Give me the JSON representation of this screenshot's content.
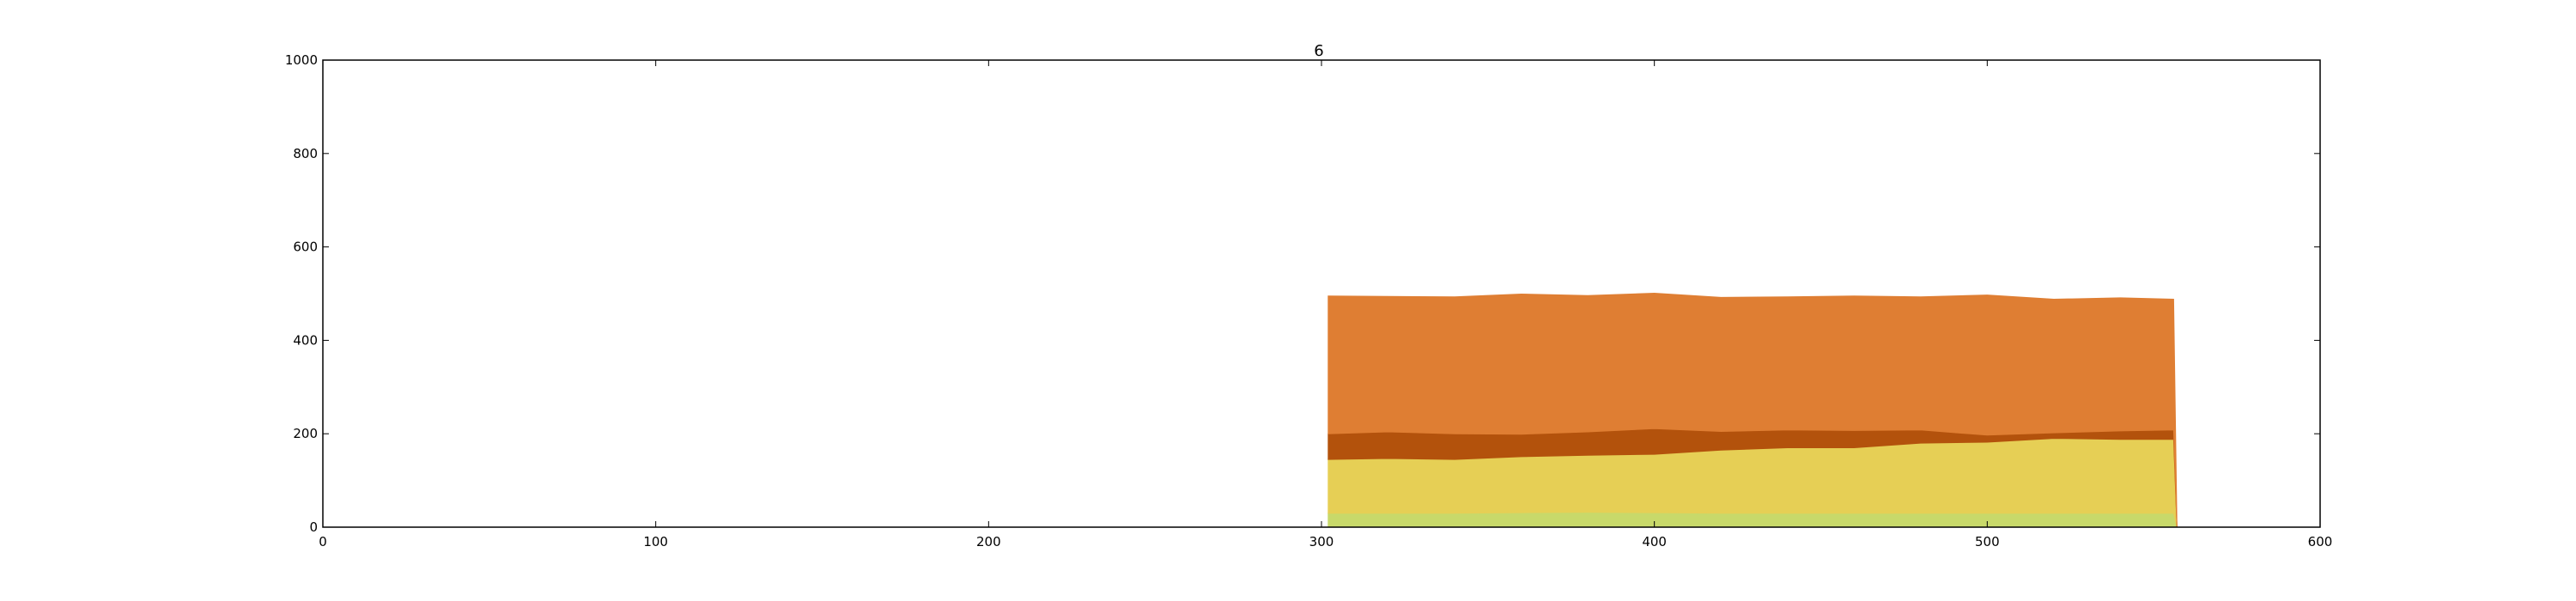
{
  "chart_data": {
    "type": "area",
    "title": "6",
    "xlabel": "",
    "ylabel": "",
    "xlim": [
      0,
      600
    ],
    "ylim": [
      0,
      1000
    ],
    "x_ticks": [
      0,
      100,
      200,
      300,
      400,
      500,
      600
    ],
    "y_ticks": [
      0,
      200,
      400,
      600,
      800,
      1000
    ],
    "x_tick_labels": [
      "0",
      "100",
      "200",
      "300",
      "400",
      "500",
      "600"
    ],
    "y_tick_labels": [
      "0",
      "200",
      "400",
      "600",
      "800",
      "1000"
    ],
    "grid": false,
    "legend": "none",
    "stacked": true,
    "x": [
      302,
      320,
      340,
      360,
      380,
      400,
      420,
      440,
      460,
      480,
      500,
      520,
      540,
      556,
      557
    ],
    "series": [
      {
        "color": "#c8d96a",
        "values": [
          30,
          30,
          30,
          31,
          32,
          31,
          30,
          30,
          30,
          30,
          30,
          30,
          30,
          30,
          0
        ]
      },
      {
        "color": "#e6cf55",
        "values": [
          115,
          117,
          115,
          120,
          122,
          125,
          135,
          140,
          140,
          150,
          152,
          160,
          158,
          158,
          0
        ]
      },
      {
        "color": "#b3520c",
        "values": [
          55,
          57,
          55,
          48,
          50,
          55,
          40,
          38,
          37,
          28,
          15,
          12,
          18,
          20,
          0
        ]
      },
      {
        "color": "#df7e33",
        "values": [
          295,
          290,
          293,
          300,
          292,
          290,
          287,
          285,
          288,
          285,
          300,
          286,
          285,
          280,
          0
        ]
      }
    ]
  }
}
